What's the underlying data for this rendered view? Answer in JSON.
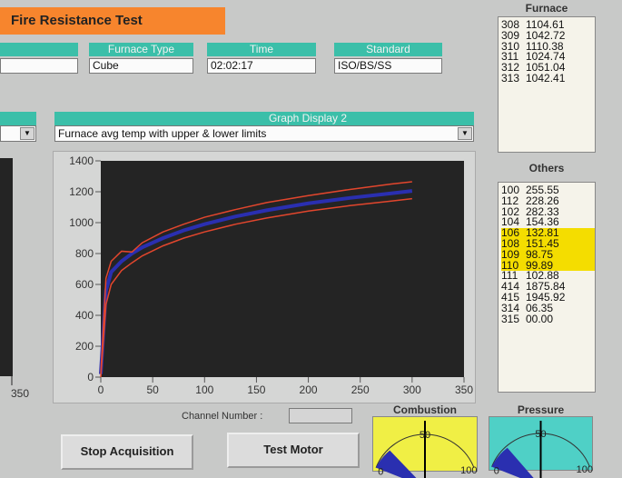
{
  "header": {
    "title": "Fire Resistance Test"
  },
  "fields": {
    "furnace_type": {
      "label": "Furnace Type",
      "value": "Cube"
    },
    "time": {
      "label": "Time",
      "value": "02:02:17"
    },
    "standard": {
      "label": "Standard",
      "value": "ISO/BS/SS"
    }
  },
  "graph_display": {
    "label": "Graph Display 2",
    "selected": "Furnace avg temp with upper & lower limits"
  },
  "furnace_panel": {
    "title": "Furnace",
    "rows": [
      [
        "308",
        "1104.61"
      ],
      [
        "309",
        "1042.72"
      ],
      [
        "310",
        "1110.38"
      ],
      [
        "311",
        "1024.74"
      ],
      [
        "312",
        "1051.04"
      ],
      [
        "313",
        "1042.41"
      ]
    ]
  },
  "others_panel": {
    "title": "Others",
    "rows": [
      [
        "100",
        "255.55"
      ],
      [
        "112",
        "228.26"
      ],
      [
        "102",
        "282.33"
      ],
      [
        "104",
        "154.36"
      ],
      [
        "106",
        "132.81"
      ],
      [
        "108",
        "151.45"
      ],
      [
        "109",
        "98.75"
      ],
      [
        "110",
        "99.89"
      ],
      [
        "111",
        "102.88"
      ],
      [
        "414",
        "1875.84"
      ],
      [
        "415",
        "1945.92"
      ],
      [
        "314",
        "06.35"
      ],
      [
        "315",
        "00.00"
      ]
    ],
    "highlighted_rows": [
      4,
      5,
      6,
      7
    ],
    "highlight_color": "#f4dd00"
  },
  "left_axis_label": "350",
  "channel_number": {
    "label": "Channel Number :",
    "value": ""
  },
  "buttons": {
    "stop": "Stop Acquisition",
    "test_motor": "Test Motor"
  },
  "gauges": {
    "combustion": {
      "title": "Combustion",
      "min": "0",
      "mid": "50",
      "max": "100",
      "color": "#f0ef45",
      "fill_fraction": 0.18
    },
    "pressure": {
      "title": "Pressure",
      "min": "0",
      "mid": "50",
      "max": "100",
      "color": "#4fd0c6",
      "fill_fraction": 0.2
    }
  },
  "colors": {
    "accent_teal": "#3bbfa9",
    "title_orange": "#f7852d",
    "plot_bg": "#242424",
    "limit_line": "#e2462d",
    "avg_line": "#2a2fb0"
  },
  "chart_data": {
    "type": "line",
    "xlim": [
      0,
      350
    ],
    "ylim": [
      0,
      1400
    ],
    "x_ticks": [
      "0",
      "50",
      "100",
      "150",
      "200",
      "250",
      "300",
      "350"
    ],
    "y_ticks": [
      "0",
      "200",
      "400",
      "600",
      "800",
      "1000",
      "1200",
      "1400"
    ],
    "series": [
      {
        "values_x": [
          0,
          5,
          10,
          20,
          30,
          40,
          60,
          80,
          100,
          130,
          160,
          200,
          240,
          280,
          300
        ],
        "values_y": [
          20,
          560,
          680,
          750,
          800,
          840,
          900,
          950,
          990,
          1040,
          1080,
          1125,
          1160,
          1190,
          1205
        ],
        "color": "#2a2fb0"
      },
      {
        "values_x": [
          0,
          5,
          10,
          20,
          30,
          40,
          60,
          80,
          100,
          130,
          160,
          200,
          240,
          280,
          300
        ],
        "values_y": [
          20,
          640,
          750,
          815,
          810,
          870,
          940,
          990,
          1035,
          1085,
          1130,
          1175,
          1215,
          1250,
          1265
        ],
        "color": "#e2462d"
      },
      {
        "values_x": [
          0,
          5,
          10,
          20,
          30,
          40,
          60,
          80,
          100,
          130,
          160,
          200,
          240,
          280,
          300
        ],
        "values_y": [
          0,
          470,
          600,
          690,
          740,
          785,
          850,
          900,
          940,
          990,
          1030,
          1075,
          1110,
          1140,
          1155
        ],
        "color": "#e2462d"
      }
    ],
    "xlabel": "",
    "ylabel": "",
    "title": ""
  }
}
